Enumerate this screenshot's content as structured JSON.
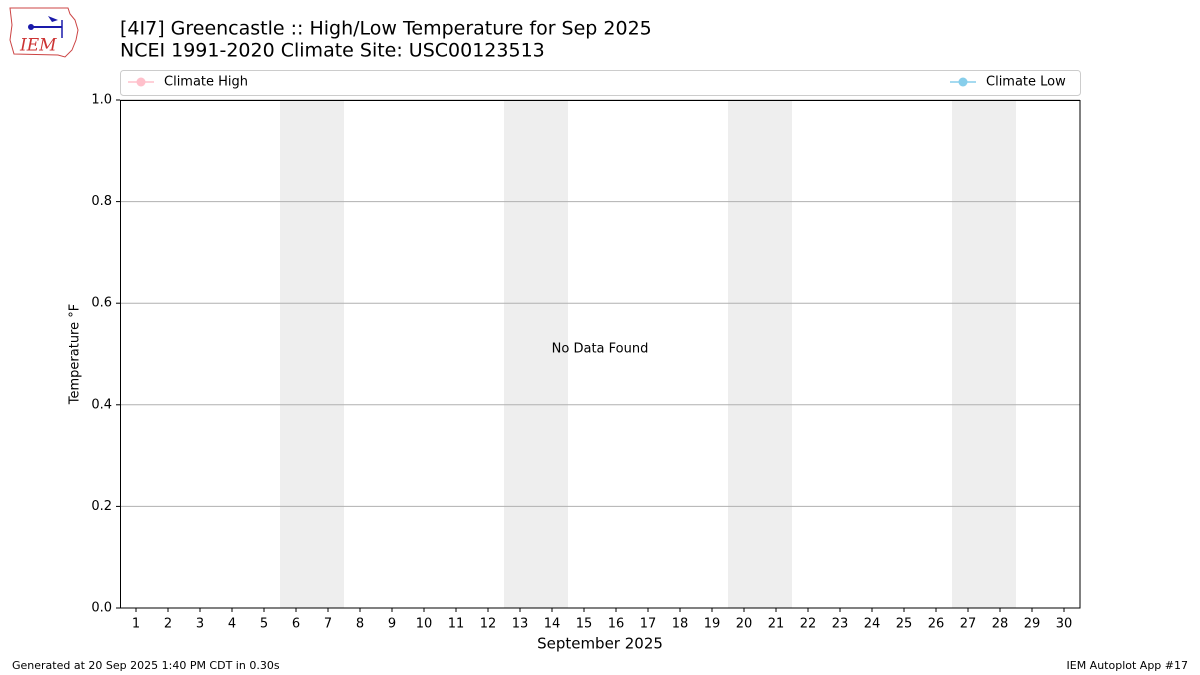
{
  "chart_data": {
    "type": "line",
    "title": "[4I7] Greencastle :: High/Low Temperature for Sep 2025",
    "subtitle": "NCEI 1991-2020 Climate Site: USC00123513",
    "xlabel": "September 2025",
    "ylabel": "Temperature °F",
    "annotation": "No Data Found",
    "x": [],
    "series": [
      {
        "name": "Climate High",
        "color": "#ffc0cb",
        "values": []
      },
      {
        "name": "Climate Low",
        "color": "#87ceeb",
        "values": []
      }
    ],
    "xlim": [
      0.5,
      30.5
    ],
    "xticks": [
      1,
      2,
      3,
      4,
      5,
      6,
      7,
      8,
      9,
      10,
      11,
      12,
      13,
      14,
      15,
      16,
      17,
      18,
      19,
      20,
      21,
      22,
      23,
      24,
      25,
      26,
      27,
      28,
      29,
      30
    ],
    "ylim": [
      0,
      1
    ],
    "yticks": [
      {
        "value": 0,
        "label": "0.0"
      },
      0.2,
      0.4,
      0.6,
      0.8,
      {
        "value": 1,
        "label": "1.0"
      }
    ],
    "grid": true,
    "shaded_spans": [
      [
        5.5,
        7.5
      ],
      [
        12.5,
        14.5
      ],
      [
        19.5,
        21.5
      ],
      [
        26.5,
        28.5
      ]
    ],
    "shade_color": "#eeeeee",
    "footer_left": "Generated at 20 Sep 2025 1:40 PM CDT in 0.30s",
    "footer_right": "IEM Autoplot App #17",
    "logo_text": "IEM"
  }
}
